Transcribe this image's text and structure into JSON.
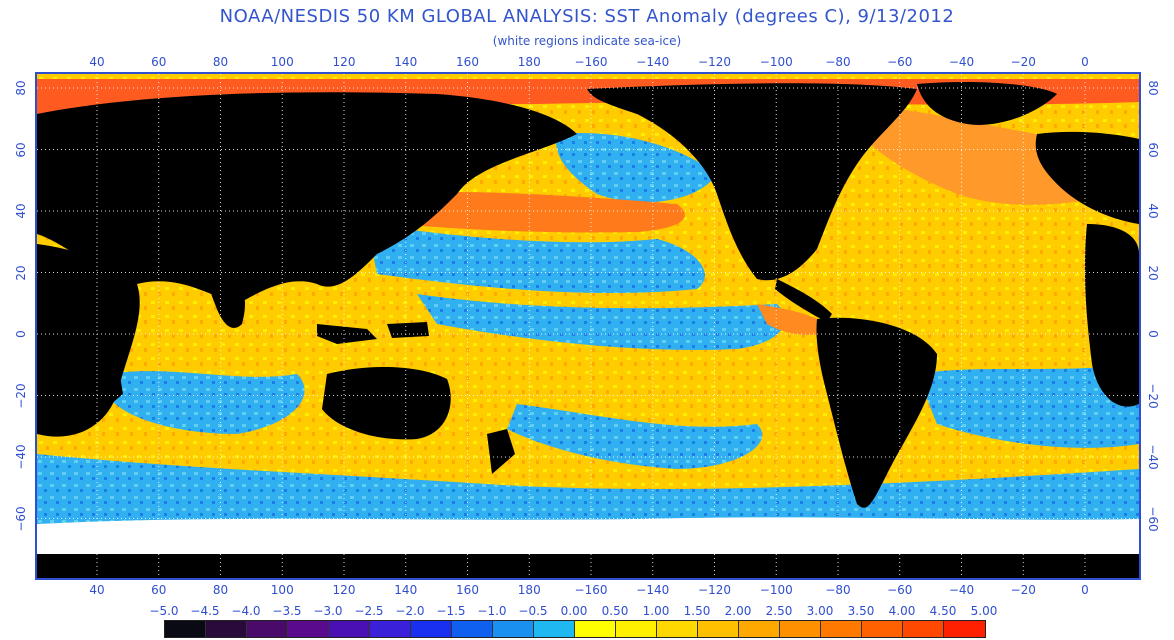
{
  "header": {
    "title": "NOAA/NESDIS 50 KM GLOBAL ANALYSIS: SST Anomaly (degrees C), 9/13/2012",
    "subtitle": "(white regions indicate sea-ice)"
  },
  "axes": {
    "longitude_ticks": [
      "40",
      "60",
      "80",
      "100",
      "120",
      "140",
      "160",
      "180",
      "−160",
      "−140",
      "−120",
      "−100",
      "−80",
      "−60",
      "−40",
      "−20",
      "0"
    ],
    "latitude_ticks_left": [
      "80",
      "60",
      "40",
      "20",
      "0",
      "−20",
      "−40",
      "−60"
    ],
    "latitude_ticks_right": [
      "80",
      "60",
      "40",
      "20",
      "0",
      "−20",
      "−40",
      "−60"
    ]
  },
  "colorbar": {
    "labels": [
      "−5.0",
      "−4.5",
      "−4.0",
      "−3.5",
      "−3.0",
      "−2.5",
      "−2.0",
      "−1.5",
      "−1.0",
      "−0.5",
      "0.00",
      "0.50",
      "1.00",
      "1.50",
      "2.00",
      "2.50",
      "3.00",
      "3.50",
      "4.00",
      "4.50",
      "5.00"
    ],
    "colors": [
      "#0a0a14",
      "#2a0a3a",
      "#4a0a6a",
      "#5a0a8c",
      "#4a10b4",
      "#3a20d8",
      "#1a30f0",
      "#1060f0",
      "#1a90f0",
      "#20b8f0",
      "#ffff00",
      "#fff000",
      "#ffd800",
      "#ffc000",
      "#ffa800",
      "#ff9000",
      "#ff7800",
      "#ff6000",
      "#ff4800",
      "#ff2000"
    ]
  },
  "legend_colors": {
    "land": "#000000",
    "sea_ice": "#ffffff",
    "grid": "#ffffff"
  }
}
